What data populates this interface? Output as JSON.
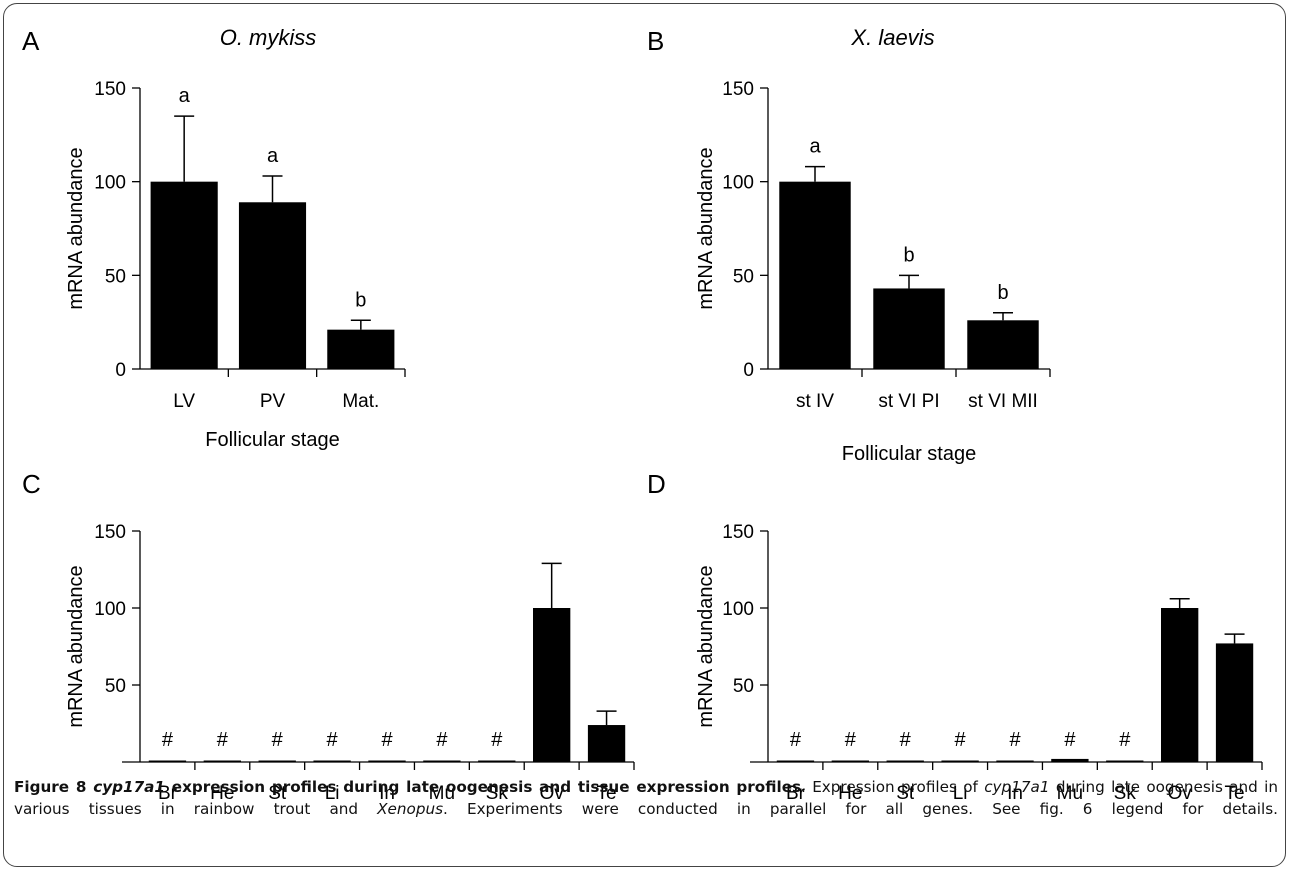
{
  "chart_data": [
    {
      "panel": "A",
      "type": "bar",
      "title": "O. mykiss",
      "xlabel": "Follicular stage",
      "ylabel": "mRNA abundance",
      "categories": [
        "LV",
        "PV",
        "Mat."
      ],
      "values": [
        100,
        89,
        21
      ],
      "errors": [
        35,
        14,
        5
      ],
      "annotations": [
        "a",
        "a",
        "b"
      ],
      "yticks": [
        0,
        50,
        100,
        150
      ],
      "ylim": [
        0,
        150
      ]
    },
    {
      "panel": "B",
      "type": "bar",
      "title": "X. laevis",
      "xlabel": "Follicular stage",
      "ylabel": "mRNA abundance",
      "categories": [
        "st IV",
        "st VI PI",
        "st VI MII"
      ],
      "values": [
        100,
        43,
        26
      ],
      "errors": [
        8,
        7,
        4
      ],
      "annotations": [
        "a",
        "b",
        "b"
      ],
      "yticks": [
        0,
        50,
        100,
        150
      ],
      "ylim": [
        0,
        150
      ]
    },
    {
      "panel": "C",
      "type": "bar",
      "title": "",
      "xlabel": "",
      "ylabel": "mRNA abundance",
      "categories": [
        "Br",
        "He",
        "St",
        "Li",
        "In",
        "Mu",
        "Sk",
        "Ov",
        "Te"
      ],
      "values": [
        0,
        0,
        0,
        0,
        0,
        0,
        0,
        100,
        24
      ],
      "errors": [
        0,
        0,
        0,
        0,
        0,
        0,
        0,
        29,
        9
      ],
      "annotations": [
        "#",
        "#",
        "#",
        "#",
        "#",
        "#",
        "#",
        "",
        ""
      ],
      "yticks": [
        50,
        100,
        150
      ],
      "ylim": [
        0,
        150
      ]
    },
    {
      "panel": "D",
      "type": "bar",
      "title": "",
      "xlabel": "",
      "ylabel": "mRNA abundance",
      "categories": [
        "Br",
        "He",
        "St",
        "Li",
        "In",
        "Mu",
        "Sk",
        "Ov",
        "Te"
      ],
      "values": [
        0,
        0,
        0,
        0,
        0,
        2,
        0,
        100,
        77
      ],
      "errors": [
        0,
        0,
        0,
        0,
        0,
        0,
        0,
        6,
        6
      ],
      "annotations": [
        "#",
        "#",
        "#",
        "#",
        "#",
        "#",
        "#",
        "",
        ""
      ],
      "yticks": [
        50,
        100,
        150
      ],
      "ylim": [
        0,
        150
      ]
    }
  ],
  "caption": {
    "figure_label": "Figure 8",
    "title_gene": "cyp17a1",
    "title_rest": " expression profiles during late oogenesis and tissue expression profiles",
    "text_1": ". Expression profiles of ",
    "text_gene": "cyp17a1",
    "text_2": " during late oogenesis and in various tissues in rainbow trout and ",
    "text_xen": "Xenopus",
    "text_3": ". Experiments were conducted in parallel for all genes. See fig. 6 legend for details."
  }
}
